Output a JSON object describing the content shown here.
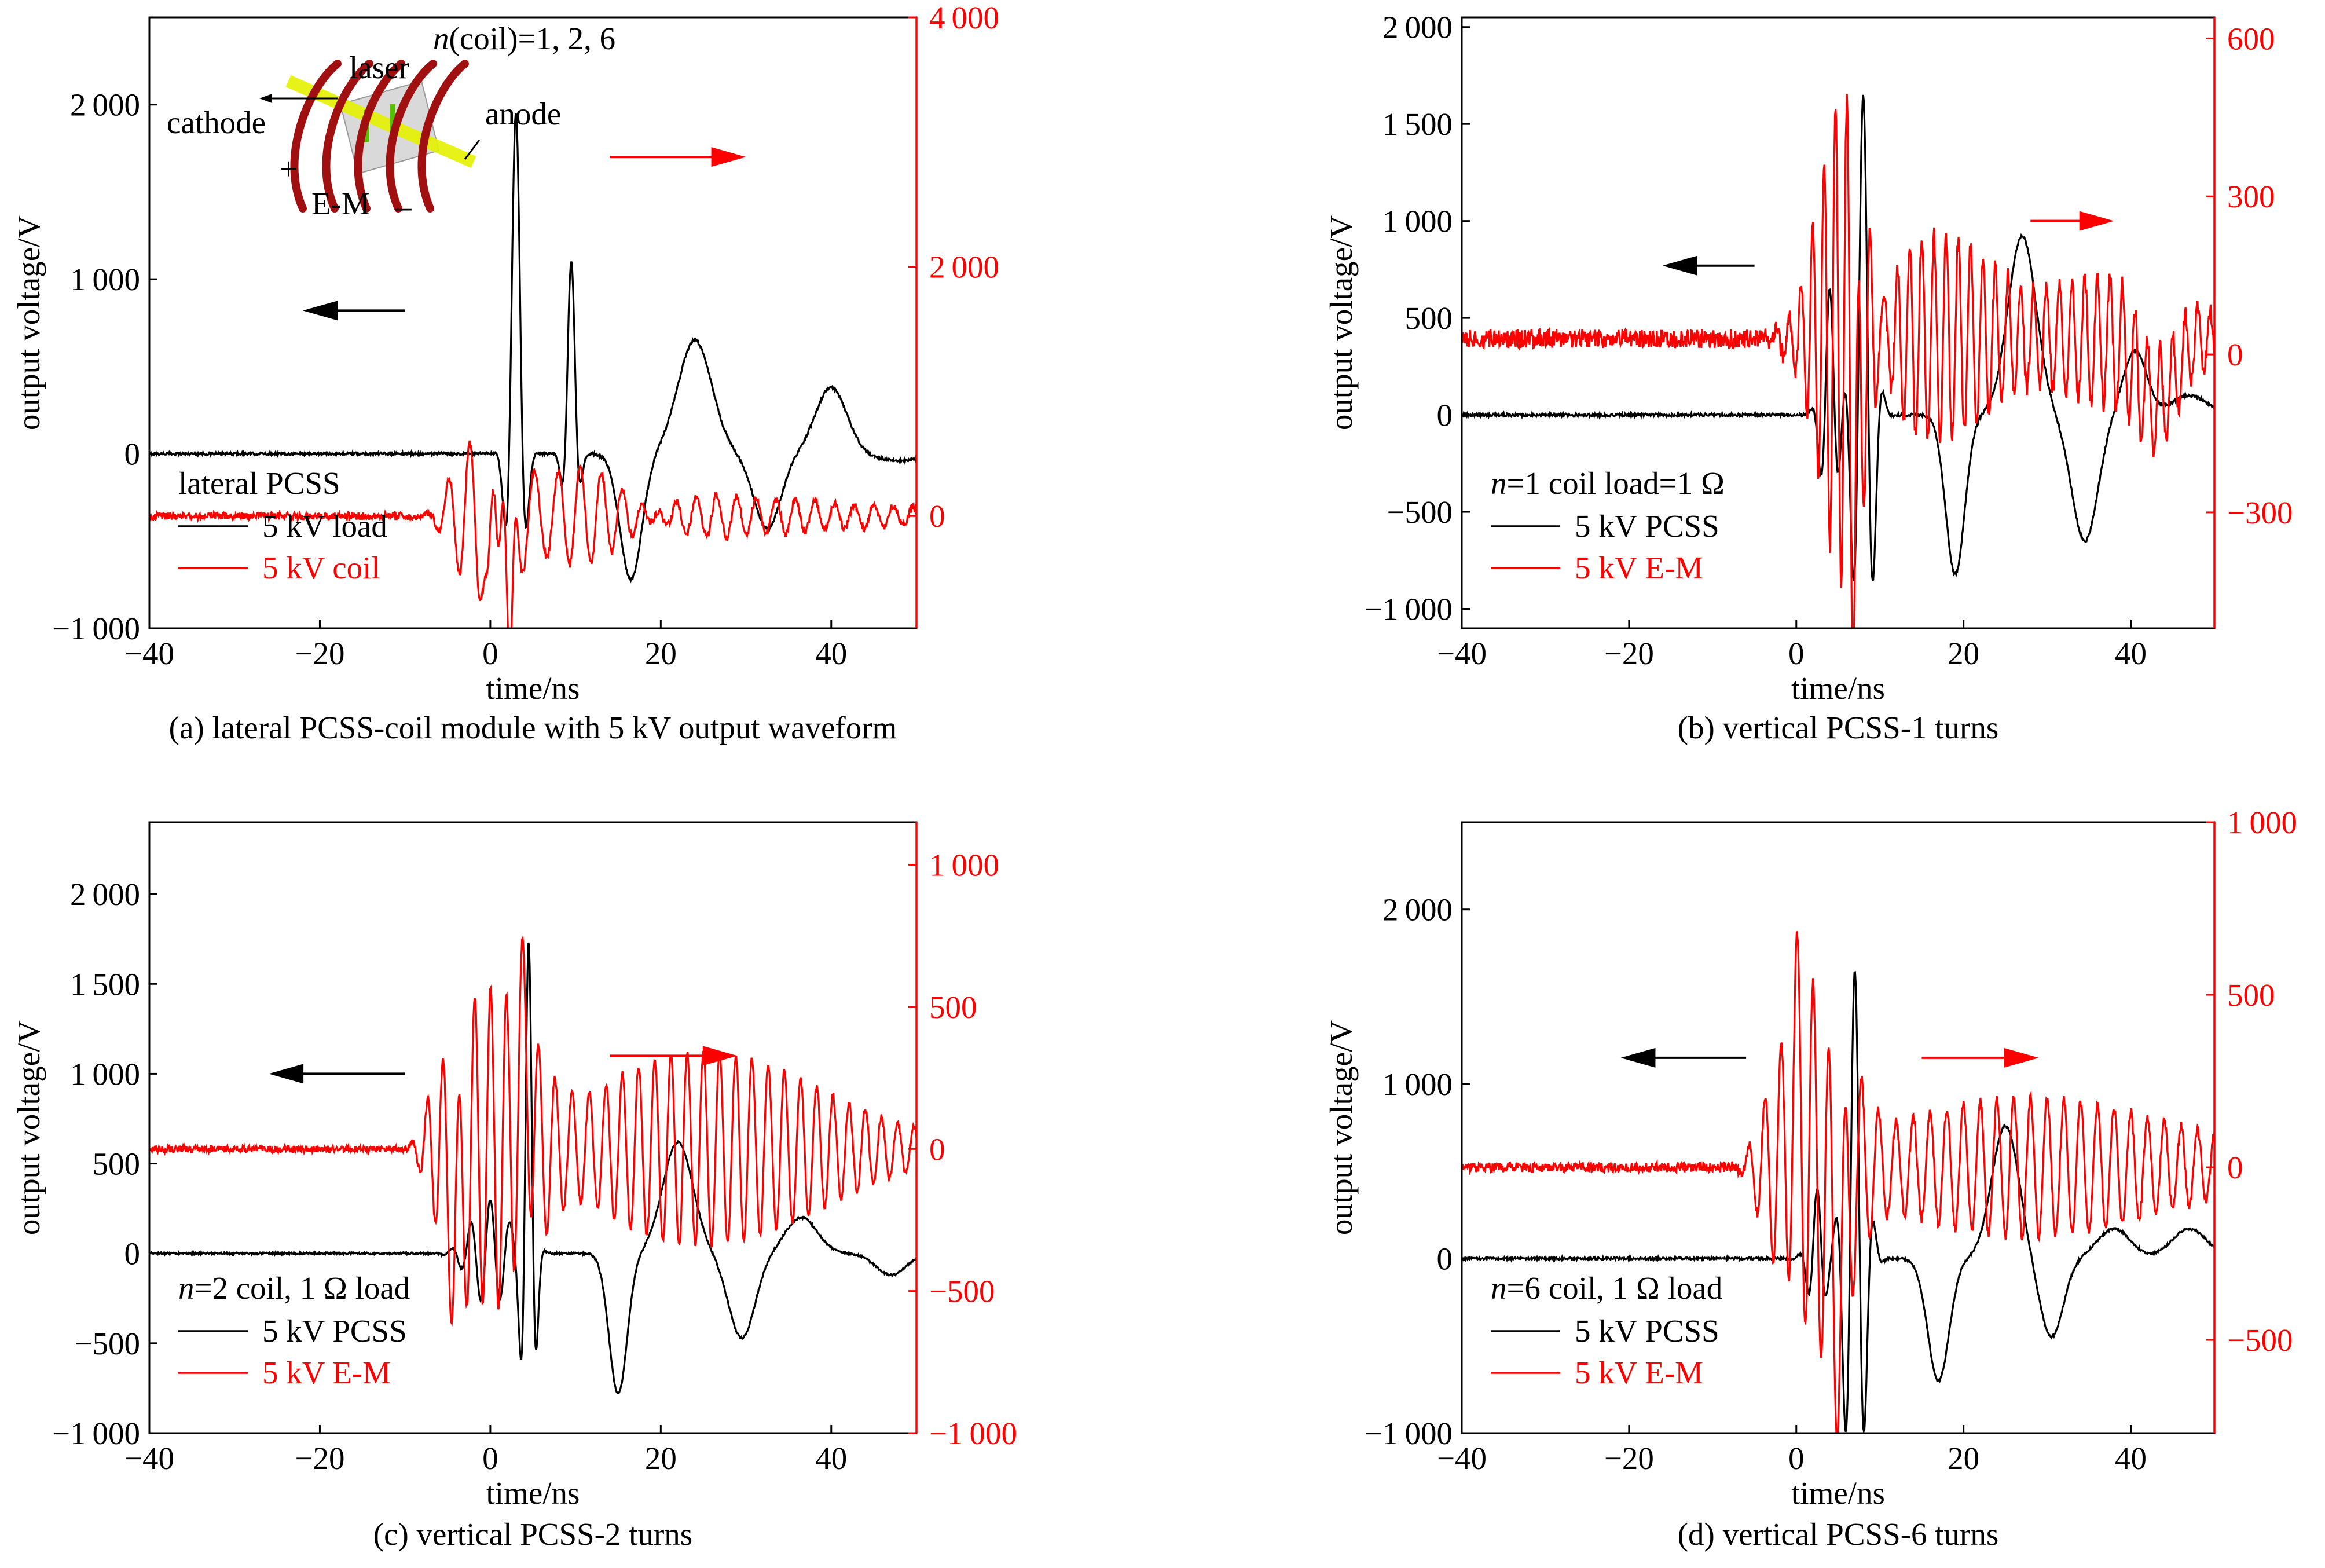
{
  "chart_data": [
    {
      "type": "line",
      "caption": "(a) lateral PCSS-coil module with 5 kV output waveform",
      "xlabel": "time/ns",
      "ylabel": "output voltage/V",
      "xlim": [
        -40,
        50
      ],
      "xticks": [
        -40,
        -20,
        0,
        20,
        40
      ],
      "ylim_left": [
        -1000,
        2500
      ],
      "yticks_left": [
        -1000,
        0,
        1000,
        2000
      ],
      "ylim_right": [
        -900,
        4000
      ],
      "yticks_right": [
        0,
        2000,
        4000
      ],
      "legend_title": "lateral PCSS",
      "legend_italic_prefix": "",
      "legend_placement": "lower-left",
      "series": [
        {
          "name": "5 kV load",
          "axis": "left",
          "color": "#000000",
          "profile": {
            "base": 0,
            "noise": 8,
            "onset": -8,
            "fast": [
              [
                3,
                1950,
                1.1,
                3.2
              ],
              [
                9.5,
                1100,
                0.9,
                3.0
              ]
            ],
            "slow": [
              [
                16.5,
                -720,
                1.8
              ],
              [
                24,
                650,
                2.8
              ],
              [
                32.5,
                -430,
                2.2
              ],
              [
                40,
                380,
                2.6
              ],
              [
                48,
                -40,
                4
              ]
            ]
          }
        },
        {
          "name": "5 kV coil",
          "axis": "right",
          "color": "#ff0000",
          "profile": {
            "base": 0,
            "noise": 30,
            "onset": -6,
            "fast": [
              [
                0,
                600,
                6,
                2.4
              ],
              [
                8,
                300,
                12,
                2.6
              ],
              [
                22,
                160,
                30,
                2.3
              ]
            ],
            "slow": [
              [
                2.3,
                -1700,
                0.5
              ],
              [
                -0.2,
                -900,
                0.5
              ],
              [
                1.5,
                800,
                0.5
              ]
            ]
          }
        }
      ],
      "arrows": {
        "left": {
          "y": 820,
          "x_from": -10,
          "x_to": -22
        },
        "right": {
          "y": 1700,
          "x_from": 14,
          "x_to": 30
        }
      },
      "inset": {
        "labels": [
          "laser",
          "cathode",
          "anode",
          "E-M",
          "+",
          "–"
        ],
        "formula_italic": "n",
        "formula_rest": "(coil)=1, 2, 6"
      }
    },
    {
      "type": "line",
      "caption": "(b) vertical PCSS-1 turns",
      "xlabel": "time/ns",
      "ylabel": "output voltage/V",
      "xlim": [
        -40,
        50
      ],
      "xticks": [
        -40,
        -20,
        0,
        20,
        40
      ],
      "ylim_left": [
        -1100,
        2050
      ],
      "yticks_left": [
        -1000,
        -500,
        0,
        500,
        1000,
        1500,
        2000
      ],
      "ylim_right": [
        -520,
        640
      ],
      "yticks_right": [
        -300,
        0,
        300,
        600
      ],
      "legend_title": "=1 coil load=1 Ω",
      "legend_italic_prefix": "n",
      "legend_placement": "lower-left",
      "series": [
        {
          "name": "5 kV PCSS",
          "axis": "left",
          "color": "#000000",
          "profile": {
            "base": 0,
            "noise": 8,
            "onset": -3,
            "fast": [
              [
                8,
                1650,
                1.5,
                2.6
              ],
              [
                4,
                650,
                1.3,
                2.4
              ]
            ],
            "slow": [
              [
                19,
                -820,
                1.6
              ],
              [
                27,
                920,
                2.4
              ],
              [
                34.5,
                -650,
                2.2
              ],
              [
                40.5,
                330,
                2.0
              ],
              [
                47,
                100,
                3
              ]
            ]
          }
        },
        {
          "name": "5 kV E-M",
          "axis": "right",
          "color": "#ff0000",
          "profile": {
            "base": 30,
            "noise": 18,
            "onset": -4,
            "fast": [
              [
                6,
                420,
                4,
                1.35
              ],
              [
                15,
                180,
                12,
                1.45
              ],
              [
                36,
                130,
                14,
                1.5
              ]
            ],
            "slow": [
              [
                7.2,
                -320,
                0.6
              ],
              [
                43,
                -120,
                3
              ]
            ]
          }
        }
      ],
      "arrows": {
        "left": {
          "y": 770,
          "x_from": -5,
          "x_to": -16
        },
        "right": {
          "y": 1000,
          "x_from": 28,
          "x_to": 38
        }
      }
    },
    {
      "type": "line",
      "caption": "(c) vertical PCSS-2 turns",
      "xlabel": "time/ns",
      "ylabel": "output voltage/V",
      "xlim": [
        -40,
        50
      ],
      "xticks": [
        -40,
        -20,
        0,
        20,
        40
      ],
      "ylim_left": [
        -1000,
        2400
      ],
      "yticks_left": [
        -1000,
        -500,
        0,
        500,
        1000,
        1500,
        2000
      ],
      "ylim_right": [
        -1000,
        1150
      ],
      "yticks_right": [
        -1000,
        -500,
        0,
        500,
        1000
      ],
      "legend_title": "=2 coil, 1 Ω load",
      "legend_italic_prefix": "n",
      "legend_placement": "lower-left",
      "series": [
        {
          "name": "5 kV PCSS",
          "axis": "left",
          "color": "#000000",
          "profile": {
            "base": 0,
            "noise": 6,
            "onset": -7,
            "fast": [
              [
                4.5,
                1700,
                0.9,
                2.2
              ],
              [
                0,
                300,
                3,
                2.3
              ]
            ],
            "slow": [
              [
                15,
                -780,
                1.5
              ],
              [
                22,
                620,
                2.5
              ],
              [
                29.5,
                -470,
                2.2
              ],
              [
                36.5,
                200,
                2.6
              ],
              [
                47,
                -120,
                2.5
              ]
            ]
          }
        },
        {
          "name": "5 kV E-M",
          "axis": "right",
          "color": "#ff0000",
          "profile": {
            "base": 0,
            "noise": 12,
            "onset": -8,
            "fast": [
              [
                0,
                520,
                8,
                1.85
              ],
              [
                25,
                340,
                20,
                1.9
              ]
            ],
            "slow": [
              [
                -4,
                -300,
                1
              ],
              [
                4,
                300,
                1
              ]
            ]
          }
        }
      ],
      "arrows": {
        "left": {
          "y": 1000,
          "x_from": -10,
          "x_to": -26
        },
        "right": {
          "y": 1100,
          "x_from": 14,
          "x_to": 29
        }
      }
    },
    {
      "type": "line",
      "caption": "(d) vertical PCSS-6 turns",
      "xlabel": "time/ns",
      "ylabel": "output voltage/V",
      "xlim": [
        -40,
        50
      ],
      "xticks": [
        -40,
        -20,
        0,
        20,
        40
      ],
      "ylim_left": [
        -1000,
        2500
      ],
      "yticks_left": [
        -1000,
        0,
        1000,
        2000
      ],
      "ylim_right": [
        -770,
        1000
      ],
      "yticks_right": [
        -500,
        0,
        500,
        1000
      ],
      "legend_title": "=6 coil, 1 Ω load",
      "legend_italic_prefix": "n",
      "legend_placement": "lower-left",
      "series": [
        {
          "name": "5 kV PCSS",
          "axis": "left",
          "color": "#000000",
          "profile": {
            "base": 0,
            "noise": 7,
            "onset": -4,
            "fast": [
              [
                7,
                1650,
                1.6,
                2.4
              ],
              [
                2.5,
                400,
                1.3,
                2.3
              ]
            ],
            "slow": [
              [
                17,
                -700,
                1.8
              ],
              [
                25,
                760,
                2.3
              ],
              [
                30.5,
                -450,
                2.0
              ],
              [
                38,
                170,
                2.8
              ],
              [
                47,
                170,
                3
              ]
            ]
          }
        },
        {
          "name": "5 kV E-M",
          "axis": "right",
          "color": "#ff0000",
          "profile": {
            "base": 0,
            "noise": 14,
            "onset": -6,
            "fast": [
              [
                2,
                470,
                6,
                1.9
              ],
              [
                28,
                200,
                25,
                2.0
              ]
            ],
            "slow": [
              [
                5,
                -350,
                1.2
              ],
              [
                0,
                200,
                1
              ]
            ]
          }
        }
      ],
      "arrows": {
        "left": {
          "y": 1150,
          "x_from": -6,
          "x_to": -21
        },
        "right": {
          "y": 1150,
          "x_from": 15,
          "x_to": 29
        }
      }
    }
  ]
}
